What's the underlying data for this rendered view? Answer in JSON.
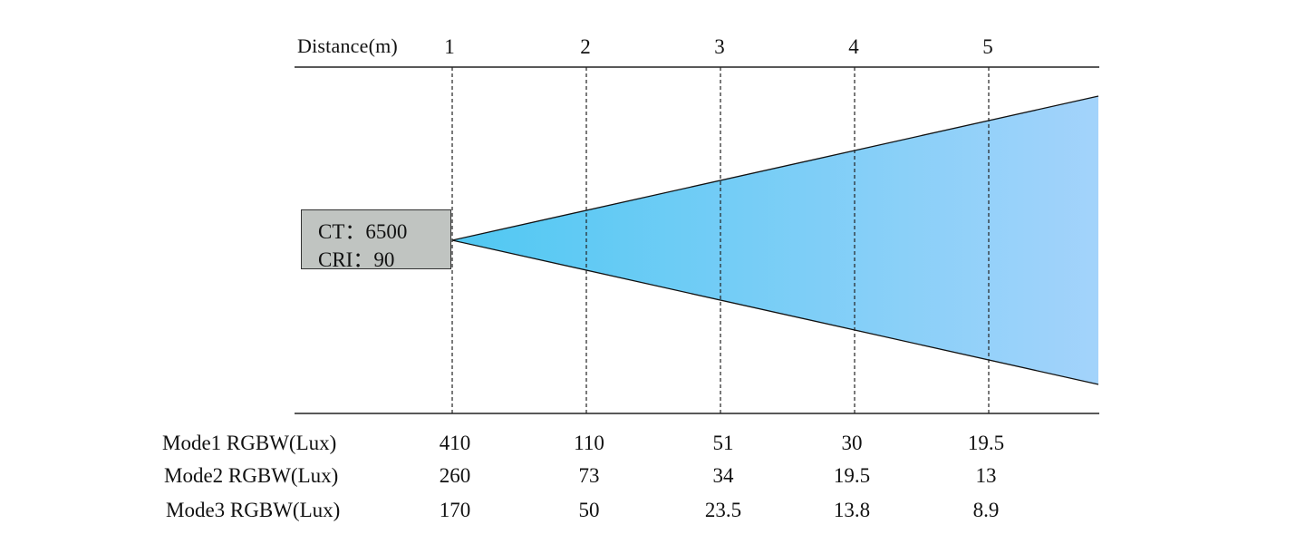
{
  "distance_label": "Distance(m)",
  "distances": [
    "1",
    "2",
    "3",
    "4",
    "5"
  ],
  "source": {
    "ct_line": "CT：6500",
    "cri_line": "CRI：90",
    "box_fill": "#c0c4c1"
  },
  "beam_colors": {
    "start": "#50c8f2",
    "end": "#a3d3fb"
  },
  "rows": [
    {
      "label": "Mode1 RGBW(Lux)",
      "values": [
        "410",
        "110",
        "51",
        "30",
        "19.5"
      ]
    },
    {
      "label": "Mode2 RGBW(Lux)",
      "values": [
        "260",
        "73",
        "34",
        "19.5",
        "13"
      ]
    },
    {
      "label": "Mode3 RGBW(Lux)",
      "values": [
        "170",
        "50",
        "23.5",
        "13.8",
        "8.9"
      ]
    }
  ]
}
